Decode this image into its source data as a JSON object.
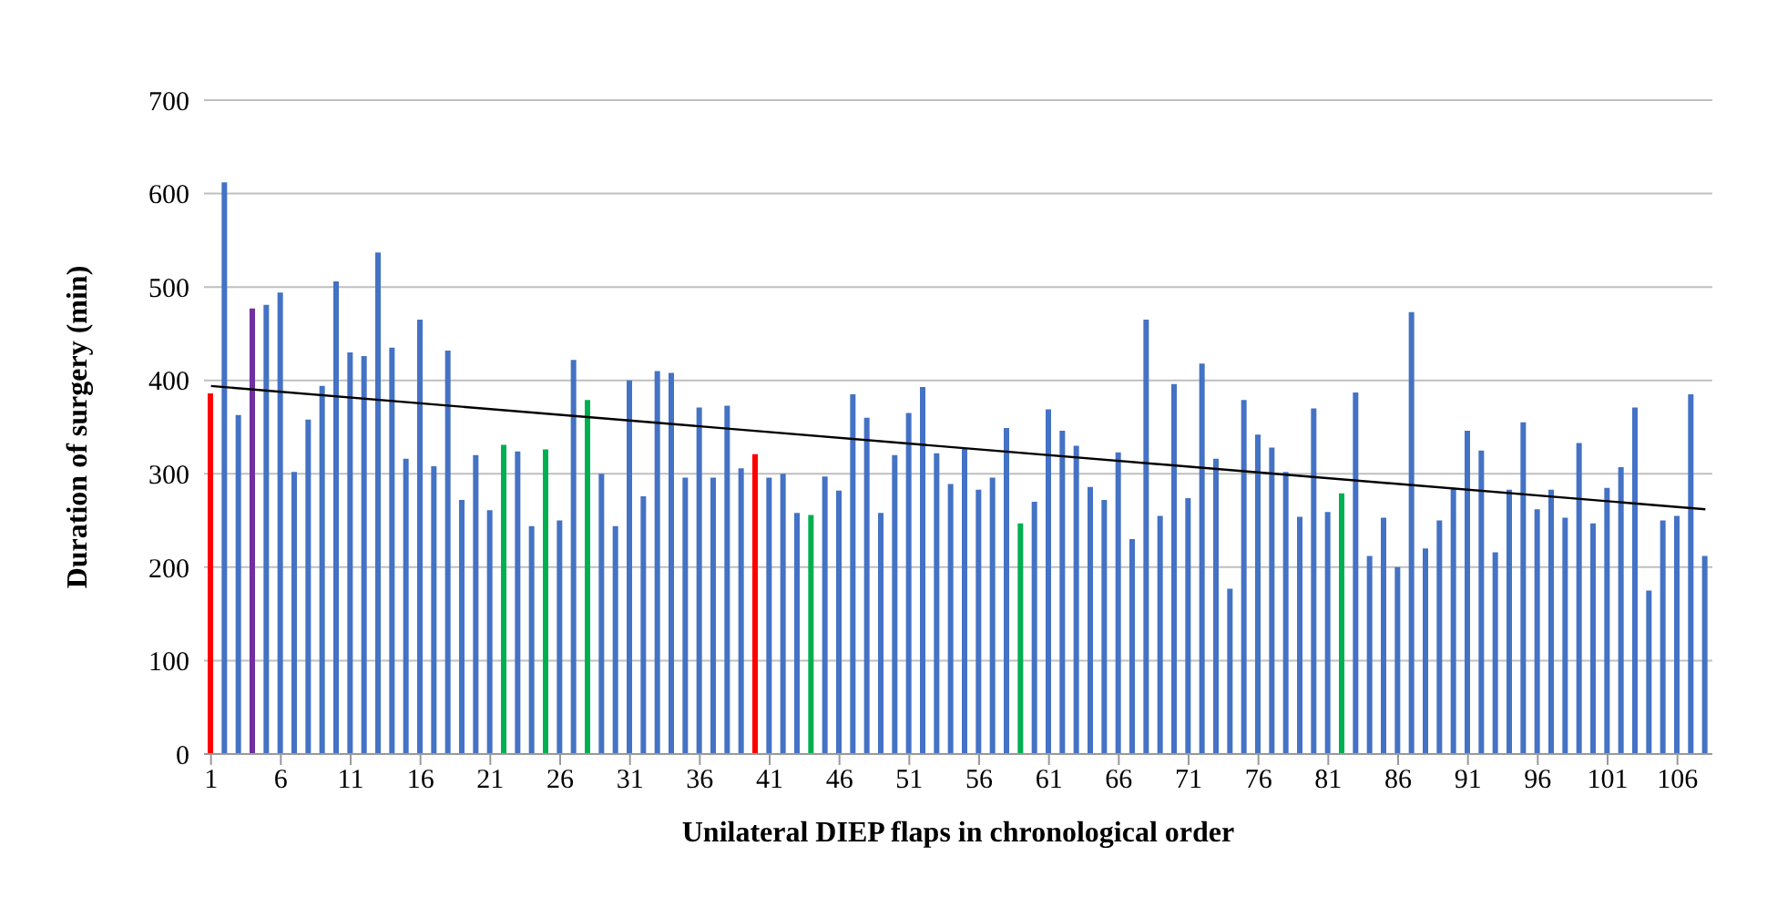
{
  "chart_data": {
    "type": "bar",
    "xlabel": "Unilateral DIEP flaps in chronological order",
    "ylabel": "Duration of surgery (min)",
    "x": [
      1,
      2,
      3,
      4,
      5,
      6,
      7,
      8,
      9,
      10,
      11,
      12,
      13,
      14,
      15,
      16,
      17,
      18,
      19,
      20,
      21,
      22,
      23,
      24,
      25,
      26,
      27,
      28,
      29,
      30,
      31,
      32,
      33,
      34,
      35,
      36,
      37,
      38,
      39,
      40,
      41,
      42,
      43,
      44,
      45,
      46,
      47,
      48,
      49,
      50,
      51,
      52,
      53,
      54,
      55,
      56,
      57,
      58,
      59,
      60,
      61,
      62,
      63,
      64,
      65,
      66,
      67,
      68,
      69,
      70,
      71,
      72,
      73,
      74,
      75,
      76,
      77,
      78,
      79,
      80,
      81,
      82,
      83,
      84,
      85,
      86,
      87,
      88,
      89,
      90,
      91,
      92,
      93,
      94,
      95,
      96,
      97,
      98,
      99,
      100,
      101,
      102,
      103,
      104,
      105,
      106,
      107,
      108
    ],
    "xlim": [
      0.5,
      108.5
    ],
    "xticks": [
      1,
      6,
      11,
      16,
      21,
      26,
      31,
      36,
      41,
      46,
      51,
      56,
      61,
      66,
      71,
      76,
      81,
      86,
      91,
      96,
      101,
      106
    ],
    "ylim": [
      0,
      700
    ],
    "yticks": [
      0,
      100,
      200,
      300,
      400,
      500,
      600,
      700
    ],
    "grid": "y",
    "series": [
      {
        "values": [
          386,
          612,
          363,
          477,
          481,
          494,
          302,
          358,
          394,
          506,
          430,
          426,
          537,
          435,
          316,
          465,
          308,
          432,
          272,
          320,
          261,
          331,
          324,
          244,
          326,
          250,
          422,
          379,
          300,
          244,
          400,
          276,
          410,
          408,
          296,
          371,
          296,
          373,
          306,
          321,
          296,
          300,
          258,
          256,
          297,
          282,
          385,
          360,
          258,
          320,
          365,
          393,
          322,
          289,
          327,
          283,
          296,
          349,
          247,
          270,
          369,
          346,
          330,
          286,
          272,
          323,
          230,
          465,
          255,
          396,
          274,
          418,
          316,
          177,
          379,
          342,
          328,
          302,
          254,
          370,
          259,
          279,
          387,
          212,
          253,
          200,
          473,
          220,
          250,
          285,
          346,
          325,
          216,
          283,
          355,
          262,
          283,
          253,
          333,
          247,
          285,
          307,
          371,
          175,
          250,
          255,
          385,
          212
        ],
        "colors": [
          "#ff0000",
          "#4472c4",
          "#4472c4",
          "#7030a0",
          "#4472c4",
          "#4472c4",
          "#4472c4",
          "#4472c4",
          "#4472c4",
          "#4472c4",
          "#4472c4",
          "#4472c4",
          "#4472c4",
          "#4472c4",
          "#4472c4",
          "#4472c4",
          "#4472c4",
          "#4472c4",
          "#4472c4",
          "#4472c4",
          "#4472c4",
          "#00b050",
          "#4472c4",
          "#4472c4",
          "#00b050",
          "#4472c4",
          "#4472c4",
          "#00b050",
          "#4472c4",
          "#4472c4",
          "#4472c4",
          "#4472c4",
          "#4472c4",
          "#4472c4",
          "#4472c4",
          "#4472c4",
          "#4472c4",
          "#4472c4",
          "#4472c4",
          "#ff0000",
          "#4472c4",
          "#4472c4",
          "#4472c4",
          "#00b050",
          "#4472c4",
          "#4472c4",
          "#4472c4",
          "#4472c4",
          "#4472c4",
          "#4472c4",
          "#4472c4",
          "#4472c4",
          "#4472c4",
          "#4472c4",
          "#4472c4",
          "#4472c4",
          "#4472c4",
          "#4472c4",
          "#00b050",
          "#4472c4",
          "#4472c4",
          "#4472c4",
          "#4472c4",
          "#4472c4",
          "#4472c4",
          "#4472c4",
          "#4472c4",
          "#4472c4",
          "#4472c4",
          "#4472c4",
          "#4472c4",
          "#4472c4",
          "#4472c4",
          "#4472c4",
          "#4472c4",
          "#4472c4",
          "#4472c4",
          "#4472c4",
          "#4472c4",
          "#4472c4",
          "#4472c4",
          "#00b050",
          "#4472c4",
          "#4472c4",
          "#4472c4",
          "#4472c4",
          "#4472c4",
          "#4472c4",
          "#4472c4",
          "#4472c4",
          "#4472c4",
          "#4472c4",
          "#4472c4",
          "#4472c4",
          "#4472c4",
          "#4472c4",
          "#4472c4",
          "#4472c4",
          "#4472c4",
          "#4472c4",
          "#4472c4",
          "#4472c4",
          "#4472c4",
          "#4472c4",
          "#4472c4",
          "#4472c4",
          "#4472c4",
          "#4472c4"
        ]
      },
      {
        "type": "line",
        "x": [
          1,
          108
        ],
        "values": [
          394,
          262
        ],
        "color": "#000000"
      }
    ]
  }
}
